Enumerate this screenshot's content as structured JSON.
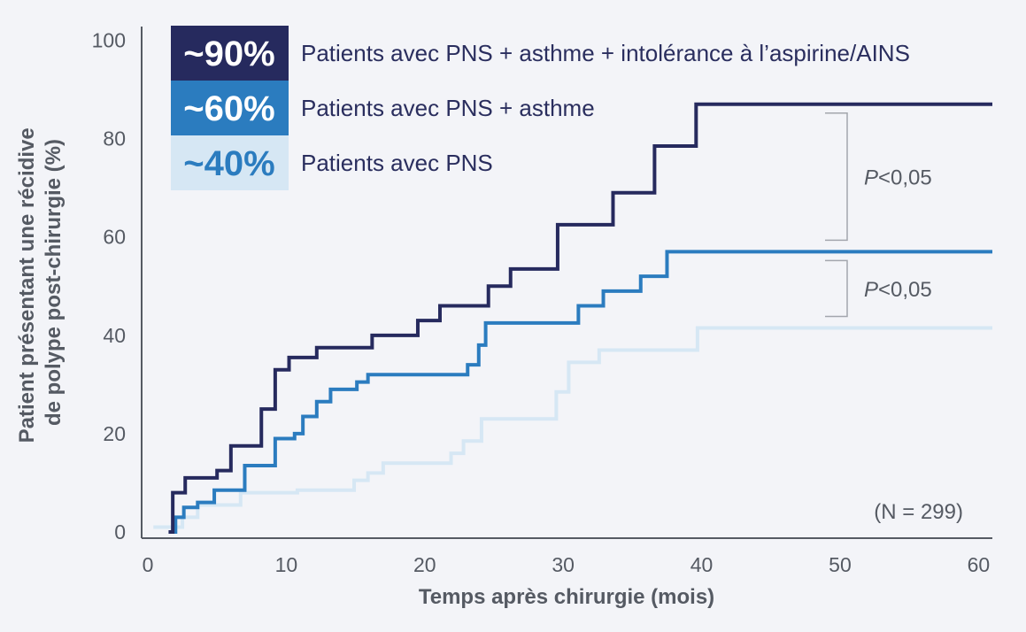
{
  "chart_data": {
    "type": "line",
    "step": true,
    "xlabel": "Temps après chirurgie (mois)",
    "ylabel_lines": [
      "Patient présentant une récidive",
      "de polype post-chirurgie (%)"
    ],
    "xlim": [
      0,
      61
    ],
    "ylim": [
      0,
      101
    ],
    "xticks": [
      "0",
      "10",
      "20",
      "30",
      "40",
      "50",
      "60"
    ],
    "yticks": [
      "0",
      "20",
      "40",
      "60",
      "80",
      "100"
    ],
    "grid": false,
    "annotation": "(N = 299)",
    "series": [
      {
        "name": "Patients avec PNS + asthme + intolérance à l’aspirine/AINS",
        "badge": "~90%",
        "color": "#262a5e",
        "badge_bg": "#262a5e",
        "badge_fg": "#ffffff",
        "x": [
          1.5,
          1.8,
          2.7,
          5.0,
          6.0,
          8.2,
          9.2,
          10.2,
          12.2,
          16.2,
          19.5,
          21.1,
          24.6,
          26.2,
          29.6,
          33.6,
          36.6,
          39.6,
          61
        ],
        "y": [
          0,
          8,
          11,
          12.5,
          17.5,
          25,
          33,
          35.5,
          37.5,
          40,
          43,
          46,
          50,
          53.5,
          62.5,
          69,
          78.5,
          87,
          87
        ]
      },
      {
        "name": "Patients avec PNS + asthme",
        "badge": "~60%",
        "color": "#2b7cbf",
        "badge_bg": "#2b7cbf",
        "badge_fg": "#ffffff",
        "x": [
          1.5,
          2.0,
          2.6,
          3.6,
          4.8,
          7.0,
          9.2,
          10.6,
          11.2,
          12.2,
          13.2,
          15.1,
          15.9,
          17.1,
          23.1,
          23.9,
          24.4,
          25.4,
          31.1,
          32.9,
          35.6,
          37.5,
          61
        ],
        "y": [
          0,
          3,
          5,
          6,
          8.5,
          13.5,
          19,
          20,
          23.5,
          26.5,
          29,
          30.5,
          32,
          32,
          34,
          38,
          42.5,
          42.5,
          46,
          49,
          52,
          57,
          57
        ]
      },
      {
        "name": "Patients avec PNS",
        "badge": "~40%",
        "color": "#d6e7f4",
        "badge_bg": "#d6e7f4",
        "badge_fg": "#2b7cbf",
        "x": [
          0.4,
          1.6,
          2.5,
          3.6,
          6.7,
          10.8,
          14.9,
          15.9,
          17.0,
          21.9,
          22.8,
          24.1,
          29.5,
          30.4,
          32.6,
          39.7,
          61
        ],
        "y": [
          1,
          1,
          3,
          5.5,
          8,
          8.5,
          10.5,
          12,
          14,
          16,
          18.5,
          23,
          28.5,
          34.5,
          37,
          41.5,
          41.5
        ]
      }
    ],
    "comparisons": [
      {
        "between": [
          "~90%",
          "~60%"
        ],
        "label_italic": "P",
        "label": "<0,05"
      },
      {
        "between": [
          "~60%",
          "~40%"
        ],
        "label_italic": "P",
        "label": "<0,05"
      }
    ]
  }
}
